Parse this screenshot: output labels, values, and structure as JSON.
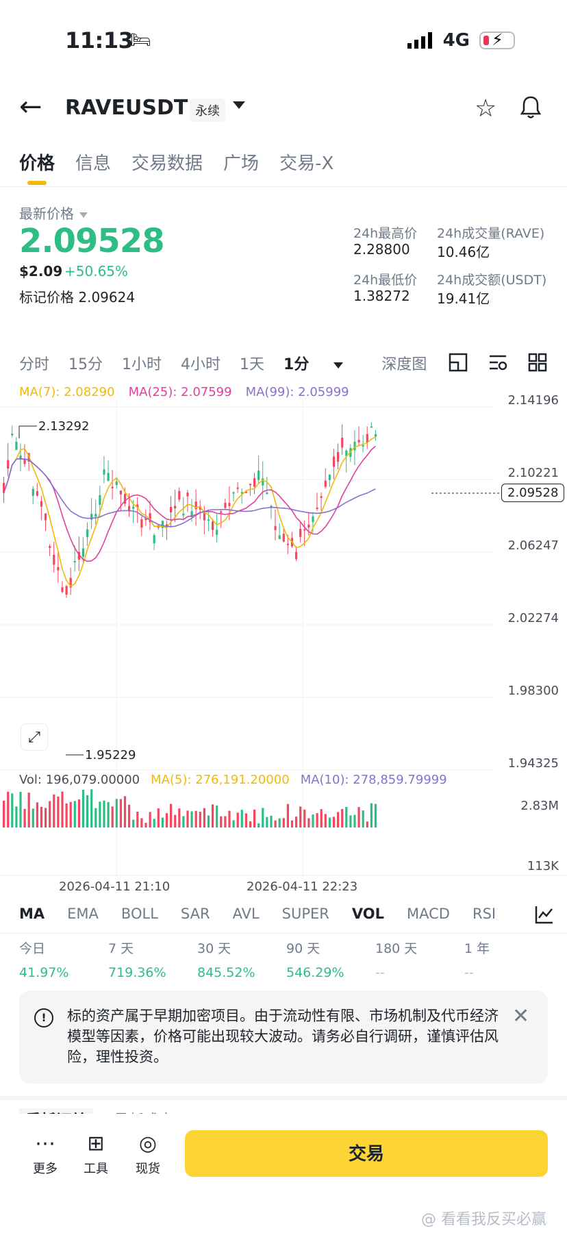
{
  "status": {
    "time": "11:13",
    "network": "4G"
  },
  "header": {
    "symbol": "RAVEUSDT",
    "badge": "永续"
  },
  "tabs": [
    "价格",
    "信息",
    "交易数据",
    "广场",
    "交易-X"
  ],
  "ticker": {
    "latest_label": "最新价格",
    "price": "2.09528",
    "usd": "$2.09",
    "change": "+50.65%",
    "mark_label": "标记价格",
    "mark_value": "2.09624",
    "stats": [
      {
        "label": "24h最高价",
        "value": "2.28800"
      },
      {
        "label": "24h成交量(RAVE)",
        "value": "10.46亿"
      },
      {
        "label": "24h最低价",
        "value": "1.38272"
      },
      {
        "label": "24h成交额(USDT)",
        "value": "19.41亿"
      }
    ]
  },
  "intervals": [
    "分时",
    "15分",
    "1小时",
    "4小时",
    "1天",
    "1分",
    "深度图"
  ],
  "ma_legend": {
    "ma7": "MA(7): 2.08290",
    "ma25": "MA(25): 2.07599",
    "ma99": "MA(99): 2.05999"
  },
  "chart": {
    "y_ticks": [
      "2.14196",
      "2.10221",
      "2.06247",
      "2.02274",
      "1.98300",
      "1.94325"
    ],
    "current_price_tag": "2.09528",
    "high_marker": "2.13292",
    "low_marker": "1.95229",
    "vol_legend": {
      "vol": "Vol: 196,079.00000",
      "ma5": "MA(5): 276,191.20000",
      "ma10": "MA(10): 278,859.79999"
    },
    "vol_ticks": [
      "2.83M",
      "113K"
    ],
    "time_labels": [
      "2026-04-11 21:10",
      "2026-04-11 22:23"
    ],
    "colors": {
      "up": "#2ebd85",
      "down": "#f6465d",
      "ma7": "#f0b90b",
      "ma25": "#e040a0",
      "ma99": "#8a6fd1"
    }
  },
  "indicators": [
    "MA",
    "EMA",
    "BOLL",
    "SAR",
    "AVL",
    "SUPER",
    "VOL",
    "MACD",
    "RSI"
  ],
  "performance": [
    {
      "label": "今日",
      "value": "41.97%"
    },
    {
      "label": "7 天",
      "value": "719.36%"
    },
    {
      "label": "30 天",
      "value": "845.52%"
    },
    {
      "label": "90 天",
      "value": "546.29%"
    },
    {
      "label": "180 天",
      "value": "--"
    },
    {
      "label": "1 年",
      "value": "--"
    }
  ],
  "notice": {
    "text": "标的资产属于早期加密项目。由于流动性有限、市场机制及代币经济模型等因素，价格可能出现较大波动。请务必自行调研，谨慎评估风险，理性投资。"
  },
  "order_tabs": [
    "委托订单",
    "最新成交"
  ],
  "bottom": {
    "more": "更多",
    "tools": "工具",
    "spot": "现货",
    "trade": "交易"
  },
  "watermark": "@ 看看我反买必赢"
}
